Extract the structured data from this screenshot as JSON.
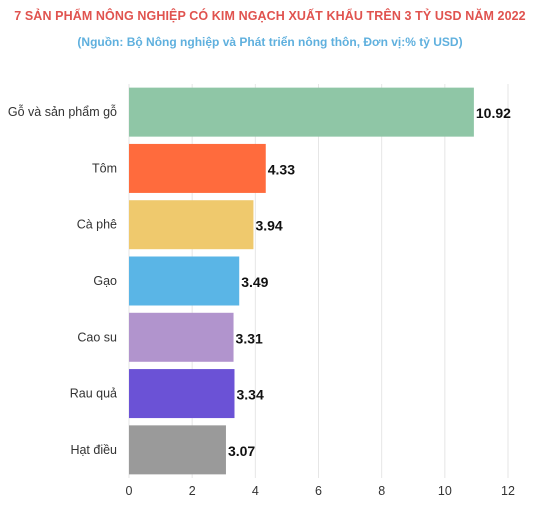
{
  "chart_data": {
    "type": "bar",
    "orientation": "horizontal",
    "title": "7 SẢN PHẨM NÔNG NGHIỆP CÓ KIM NGẠCH XUẤT KHẨU TRÊN 3 TỶ USD NĂM 2022",
    "subtitle": "(Nguồn: Bộ Nông nghiệp và Phát triển nông thôn, Đơn vị:% tỷ USD)",
    "categories": [
      "Gỗ và sản phẩm gỗ",
      "Tôm",
      "Cà phê",
      "Gạo",
      "Cao su",
      "Rau quả",
      "Hạt điều"
    ],
    "values": [
      10.92,
      4.33,
      3.94,
      3.49,
      3.31,
      3.34,
      3.07
    ],
    "value_labels": [
      "10.92",
      "4.33",
      "3.94",
      "3.49",
      "3.31",
      "3.34",
      "3.07"
    ],
    "colors": [
      "#8fc6a6",
      "#ff6b3d",
      "#efc96d",
      "#5ab5e6",
      "#b194cd",
      "#6b52d6",
      "#9a9a9a"
    ],
    "xlim": [
      0,
      12
    ],
    "x_ticks": [
      0,
      2,
      4,
      6,
      8,
      10,
      12
    ],
    "grid": true,
    "legend": "none"
  }
}
